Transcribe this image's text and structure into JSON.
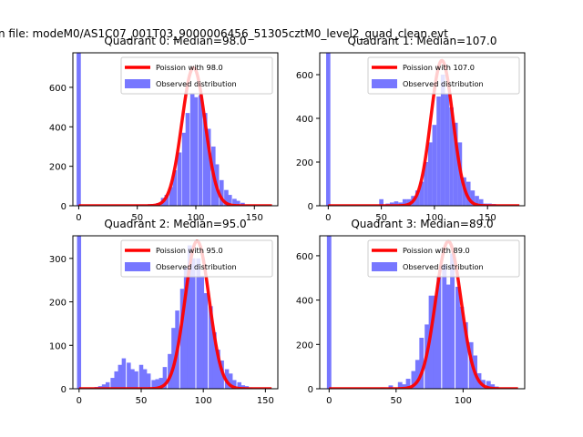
{
  "figure_title": "n file: modeM0/AS1C07_001T03_9000006456_51305cztM0_level2_quad_clean.evt",
  "colors": {
    "observed": "#7777ff",
    "poisson": "#ff0000",
    "axes": "#000000"
  },
  "legend_labels": {
    "observed": "Observed distribution"
  },
  "chart_data": [
    {
      "type": "bar",
      "title": "Quadrant 0: Median=98.0",
      "median": 98.0,
      "poisson_label": "Poission with 98.0",
      "bin_width": 3.6,
      "xlim": [
        -5,
        170
      ],
      "ylim": [
        0,
        775
      ],
      "xticks": [
        0,
        50,
        100,
        150
      ],
      "yticks": [
        0,
        200,
        400,
        600
      ],
      "legend": "top-right",
      "series": [
        {
          "name": "Observed distribution",
          "x": [
            0
          ],
          "y": [
            775
          ],
          "note": "zero bin clipped at top"
        },
        {
          "name": "Observed distribution",
          "x": [
            50,
            54,
            57,
            61,
            64,
            68,
            72,
            75,
            79,
            82,
            86,
            90,
            93,
            97,
            100,
            104,
            108,
            111,
            115,
            118,
            122,
            126,
            129,
            133,
            136,
            140,
            144,
            147,
            151,
            154,
            158
          ],
          "y": [
            3,
            5,
            4,
            8,
            8,
            14,
            40,
            55,
            95,
            180,
            270,
            370,
            470,
            570,
            550,
            560,
            470,
            390,
            300,
            210,
            130,
            80,
            55,
            35,
            25,
            15,
            6,
            4,
            3,
            2,
            1
          ]
        },
        {
          "name": "Poission with 98.0",
          "lambda": 98.0,
          "peak": 700
        }
      ]
    },
    {
      "type": "bar",
      "title": "Quadrant 1: Median=107.0",
      "median": 107.0,
      "poisson_label": "Poission with 107.0",
      "bin_width": 4.0,
      "xlim": [
        -8,
        185
      ],
      "ylim": [
        0,
        700
      ],
      "xticks": [
        0,
        50,
        100,
        150
      ],
      "yticks": [
        0,
        200,
        400,
        600
      ],
      "legend": "top-right",
      "series": [
        {
          "name": "Observed distribution",
          "x": [
            0
          ],
          "y": [
            700
          ],
          "note": "zero bin clipped at top"
        },
        {
          "name": "Observed distribution",
          "x": [
            40,
            50,
            56,
            60,
            64,
            68,
            72,
            76,
            80,
            84,
            88,
            92,
            96,
            100,
            104,
            108,
            112,
            116,
            120,
            124,
            128,
            132,
            136,
            140,
            144,
            148,
            152,
            156,
            160
          ],
          "y": [
            2,
            30,
            10,
            15,
            20,
            15,
            30,
            30,
            45,
            70,
            110,
            200,
            290,
            370,
            500,
            600,
            510,
            450,
            380,
            290,
            130,
            110,
            70,
            45,
            30,
            10,
            10,
            8,
            3
          ]
        },
        {
          "name": "Poission with 107.0",
          "lambda": 107.0,
          "peak": 665
        }
      ]
    },
    {
      "type": "bar",
      "title": "Quadrant 2: Median=95.0",
      "median": 95.0,
      "poisson_label": "Poission with 95.0",
      "bin_width": 3.3,
      "xlim": [
        -5,
        160
      ],
      "ylim": [
        0,
        352
      ],
      "xticks": [
        0,
        50,
        100,
        150
      ],
      "yticks": [
        0,
        100,
        200,
        300
      ],
      "legend": "top-right",
      "series": [
        {
          "name": "Observed distribution",
          "x": [
            0
          ],
          "y": [
            352
          ],
          "note": "zero bin clipped at top"
        },
        {
          "name": "Observed distribution",
          "x": [
            10,
            14,
            17,
            20,
            23,
            27,
            30,
            33,
            36,
            40,
            43,
            46,
            50,
            53,
            56,
            60,
            63,
            66,
            69,
            73,
            76,
            79,
            83,
            86,
            89,
            92,
            96,
            99,
            102,
            106,
            109,
            112,
            115,
            119,
            122,
            125,
            129,
            132,
            135,
            138
          ],
          "y": [
            2,
            4,
            6,
            10,
            15,
            25,
            40,
            55,
            70,
            60,
            45,
            40,
            55,
            45,
            35,
            20,
            22,
            25,
            50,
            80,
            140,
            180,
            230,
            280,
            330,
            300,
            300,
            260,
            220,
            190,
            130,
            90,
            65,
            45,
            35,
            20,
            15,
            8,
            6,
            3
          ]
        },
        {
          "name": "Poission with 95.0",
          "lambda": 95.0,
          "peak": 340
        }
      ]
    },
    {
      "type": "bar",
      "title": "Quadrant 3: Median=89.0",
      "median": 89.0,
      "poisson_label": "Poission with 89.0",
      "bin_width": 3.3,
      "xlim": [
        -7,
        146
      ],
      "ylim": [
        0,
        690
      ],
      "xticks": [
        0,
        50,
        100
      ],
      "yticks": [
        0,
        200,
        400,
        600
      ],
      "legend": "top-right",
      "series": [
        {
          "name": "Observed distribution",
          "x": [
            0
          ],
          "y": [
            690
          ],
          "note": "zero bin clipped at top"
        },
        {
          "name": "Observed distribution",
          "x": [
            40,
            46,
            53,
            56,
            59,
            63,
            66,
            69,
            73,
            76,
            79,
            82,
            86,
            89,
            92,
            96,
            99,
            102,
            106,
            109,
            112,
            115,
            119,
            122,
            125
          ],
          "y": [
            6,
            15,
            30,
            20,
            45,
            80,
            130,
            230,
            290,
            420,
            420,
            510,
            560,
            470,
            610,
            460,
            370,
            300,
            210,
            150,
            70,
            40,
            35,
            20,
            10
          ]
        },
        {
          "name": "Poission with 89.0",
          "lambda": 89.0,
          "peak": 665
        }
      ]
    }
  ]
}
